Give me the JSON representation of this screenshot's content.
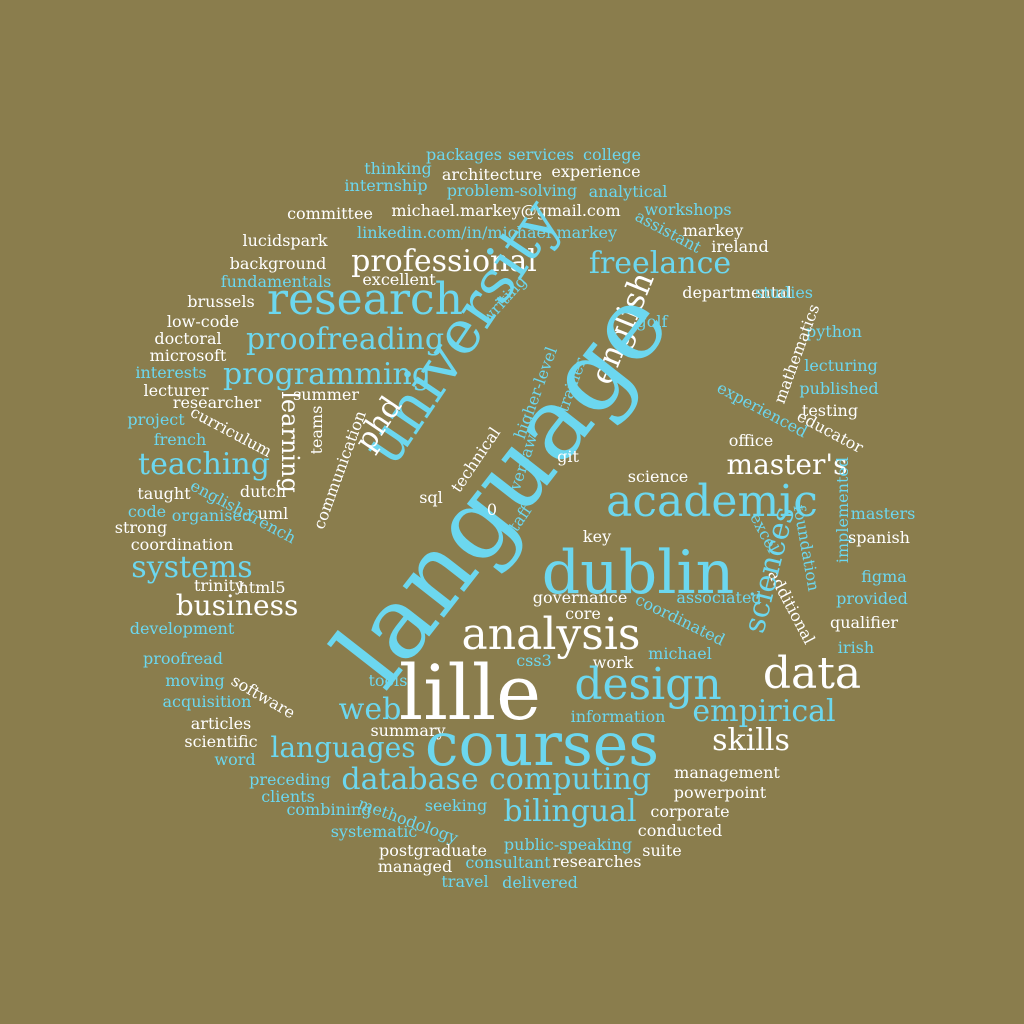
{
  "palette": {
    "background": "#8a7d4d",
    "white": "#ffffff",
    "cyan": "#6cd7ef"
  },
  "words": [
    "packages",
    "services",
    "college",
    "thinking",
    "architecture",
    "experience",
    "internship",
    "problem-solving",
    "analytical",
    "committee",
    "michael.markey@gmail.com",
    "workshops",
    "linkedin.com/in/michael-markey",
    "assistant",
    "ireland",
    "lucidspark",
    "markey",
    "background",
    "professional",
    "freelance",
    "research",
    "departmental",
    "fundamentals",
    "excellent",
    "brussels",
    "writing",
    "studies",
    "low-code",
    "doctoral",
    "proofreading",
    "english",
    "golf",
    "python",
    "microsoft",
    "mathematics",
    "interests",
    "programming",
    "lecturing",
    "lecturer",
    "higher-level",
    "published",
    "researcher",
    "trainer",
    "summer",
    "project",
    "experienced",
    "testing",
    "curriculum",
    "teams",
    "french",
    "educator",
    "teaching",
    "university",
    "learning",
    "phd",
    "office",
    "taught",
    "technical",
    "master's",
    "language",
    "oversaw",
    "science",
    "dutch",
    "communication",
    "git",
    "academic",
    "english-french",
    "strong",
    "sql",
    "uml",
    "organised",
    "staff",
    "masters",
    "coordination",
    "implemented",
    "key",
    "spanish",
    "code",
    "excel",
    "systems",
    "foundation",
    "trinity",
    "html5",
    "dublin",
    "figma",
    "business",
    "governance",
    "additional",
    "associated",
    "provided",
    "core",
    "sciences",
    "development",
    "coordinated",
    "qualifier",
    "analysis",
    "lille",
    "michael",
    "irish",
    "proofread",
    "css3",
    "work",
    "data",
    "moving",
    "design",
    "tools",
    "software",
    "acquisition",
    "information",
    "articles",
    "empirical",
    "web",
    "scientific",
    "summary",
    "skills",
    "languages",
    "courses",
    "word",
    "preceding",
    "management",
    "database",
    "computing",
    "clients",
    "powerpoint",
    "combining",
    "seeking",
    "bilingual",
    "corporate",
    "methodology",
    "systematic",
    "conducted",
    "postgraduate",
    "public-speaking",
    "suite",
    "managed",
    "consultant",
    "researches",
    "travel",
    "delivered",
    "0"
  ]
}
